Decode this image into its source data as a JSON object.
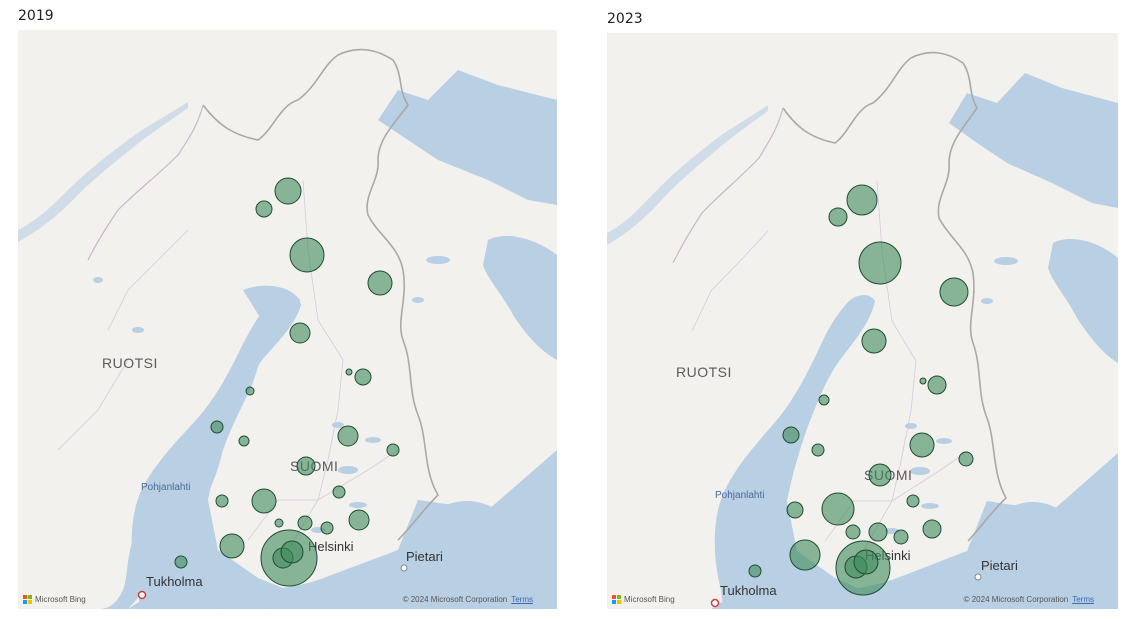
{
  "maps": [
    {
      "title": "2019",
      "labels": {
        "country_fi": "SUOMI",
        "country_se": "RUOTSI",
        "sea": "Pohjanlahti",
        "city_helsinki": "Helsinki",
        "city_stockholm": "Tukholma",
        "city_stpetersburg": "Pietari"
      },
      "attribution": {
        "brand": "Microsoft Bing",
        "copyright": "© 2024 Microsoft Corporation",
        "terms": "Terms"
      }
    },
    {
      "title": "2023",
      "labels": {
        "country_fi": "SUOMI",
        "country_se": "RUOTSI",
        "sea": "Pohjanlahti",
        "city_helsinki": "Helsinki",
        "city_stockholm": "Tukholma",
        "city_stpetersburg": "Pietari"
      },
      "attribution": {
        "brand": "Microsoft Bing",
        "copyright": "© 2024 Microsoft Corporation",
        "terms": "Terms"
      }
    }
  ],
  "colors": {
    "water": "#b9cfe4",
    "land": "#f3f1ee",
    "bubble_fill": "#3f8a5c",
    "bubble_stroke": "#1e4d31",
    "border": "#a9a9a9"
  },
  "icons": [
    "microsoft-logo-icon",
    "city-marker-icon",
    "capital-marker-icon"
  ]
}
